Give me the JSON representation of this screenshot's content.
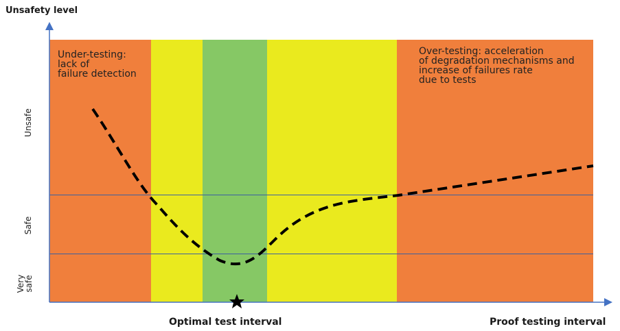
{
  "diagram": {
    "y_axis_title": "Unsafety level",
    "y_zones": [
      {
        "id": "unsafe",
        "label": "Unsafe"
      },
      {
        "id": "safe",
        "label": "Safe"
      },
      {
        "id": "very-safe",
        "label": "Very\nsafe"
      }
    ],
    "x_labels": {
      "optimal": "Optimal test interval",
      "axis": "Proof testing interval"
    },
    "annotations": {
      "under_testing": "Under-testing:\nlack of\nfailure detection",
      "over_testing": "Over-testing: acceleration\nof degradation mechanisms and\nincrease of failures rate\ndue to tests"
    },
    "colors": {
      "red_zone": "#f07f3c",
      "yellow_zone": "#eaea1e",
      "green_zone": "#86c865",
      "threshold_line": "#3a5fa0",
      "axis": "#4472c4",
      "curve": "#000000"
    },
    "markers": {
      "optimum": "star-icon"
    }
  }
}
